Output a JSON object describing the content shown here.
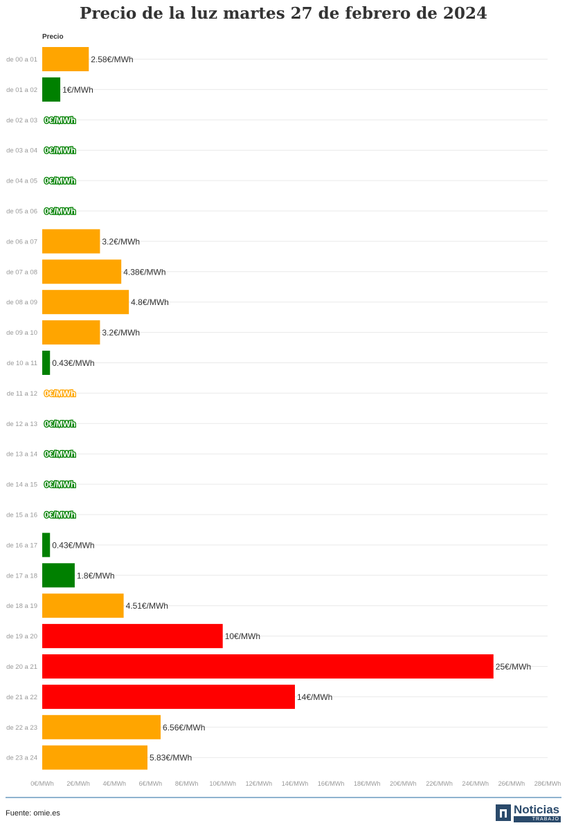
{
  "chart_data": {
    "type": "bar",
    "orientation": "horizontal",
    "title": "Precio de la luz martes 27 de febrero de 2024",
    "series_label": "Precio",
    "categories": [
      "de 00 a 01",
      "de 01 a 02",
      "de 02 a 03",
      "de 03 a 04",
      "de 04 a 05",
      "de 05 a 06",
      "de 06 a 07",
      "de 07 a 08",
      "de 08 a 09",
      "de 09 a 10",
      "de 10 a 11",
      "de 11 a 12",
      "de 12 a 13",
      "de 13 a 14",
      "de 14 a 15",
      "de 15 a 16",
      "de 16 a 17",
      "de 17 a 18",
      "de 18 a 19",
      "de 19 a 20",
      "de 20 a 21",
      "de 21 a 22",
      "de 22 a 23",
      "de 23 a 24"
    ],
    "values": [
      2.58,
      1,
      0,
      0,
      0,
      0,
      3.2,
      4.38,
      4.8,
      3.2,
      0.43,
      0,
      0,
      0,
      0,
      0,
      0.43,
      1.8,
      4.51,
      10,
      25,
      14,
      6.56,
      5.83
    ],
    "value_labels": [
      "2.58€/MWh",
      "1€/MWh",
      "0€/MWh",
      "0€/MWh",
      "0€/MWh",
      "0€/MWh",
      "3.2€/MWh",
      "4.38€/MWh",
      "4.8€/MWh",
      "3.2€/MWh",
      "0.43€/MWh",
      "0€/MWh",
      "0€/MWh",
      "0€/MWh",
      "0€/MWh",
      "0€/MWh",
      "0.43€/MWh",
      "1.8€/MWh",
      "4.51€/MWh",
      "10€/MWh",
      "25€/MWh",
      "14€/MWh",
      "6.56€/MWh",
      "5.83€/MWh"
    ],
    "bar_colors": [
      "#ffa500",
      "#008000",
      "#008000",
      "#008000",
      "#008000",
      "#008000",
      "#ffa500",
      "#ffa500",
      "#ffa500",
      "#ffa500",
      "#008000",
      "#ffa500",
      "#008000",
      "#008000",
      "#008000",
      "#008000",
      "#008000",
      "#008000",
      "#ffa500",
      "#ff0000",
      "#ff0000",
      "#ff0000",
      "#ffa500",
      "#ffa500"
    ],
    "xlim": [
      0,
      28
    ],
    "xticks": [
      0,
      2,
      4,
      6,
      8,
      10,
      12,
      14,
      16,
      18,
      20,
      22,
      24,
      26,
      28
    ],
    "xtick_labels": [
      "0€/MWh",
      "2€/MWh",
      "4€/MWh",
      "6€/MWh",
      "8€/MWh",
      "10€/MWh",
      "12€/MWh",
      "14€/MWh",
      "16€/MWh",
      "18€/MWh",
      "20€/MWh",
      "22€/MWh",
      "24€/MWh",
      "26€/MWh",
      "28€/MWh"
    ],
    "grid": true,
    "legend": "none"
  },
  "source": "Fuente: omie.es",
  "logo": {
    "word": "Noticias",
    "sub": "TRABAJO"
  },
  "colors": {
    "cheap": "#008000",
    "medium": "#ffa500",
    "expensive": "#ff0000"
  }
}
